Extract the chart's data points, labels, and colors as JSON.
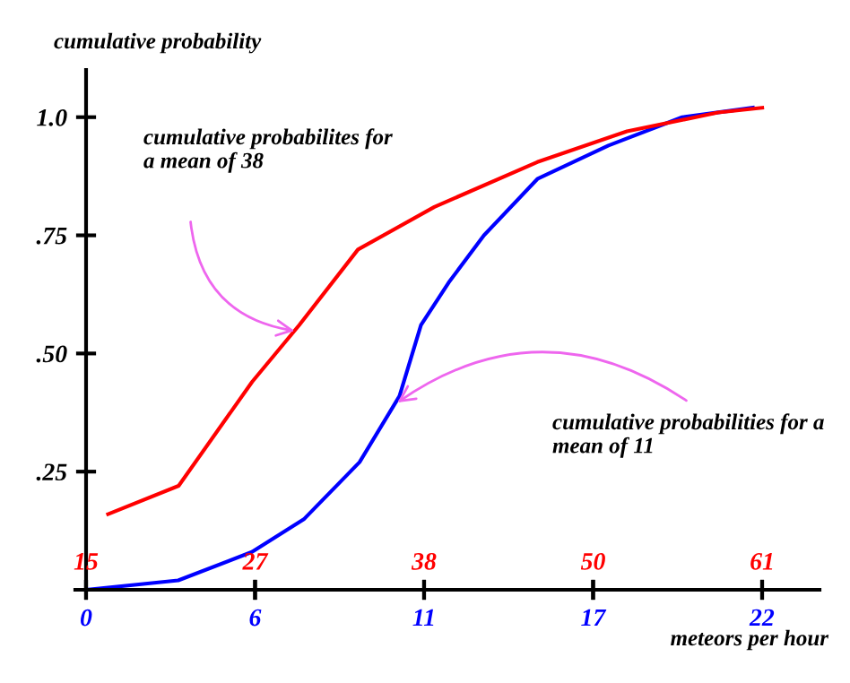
{
  "chart_data": {
    "type": "line",
    "ylabel": "cumulative probability",
    "xlabel": "meteors per hour",
    "xlim": [
      -0.35,
      23.87
    ],
    "xticks": [
      0,
      {
        "value": 5.5,
        "label": "6"
      },
      11,
      {
        "value": 16.5,
        "label": "17"
      },
      22
    ],
    "x2lim": [
      14.27,
      64.9
    ],
    "x2ticks": [
      15,
      {
        "value": 26.5,
        "label": "27"
      },
      38,
      {
        "value": 49.5,
        "label": "50"
      },
      61
    ],
    "ylim": [
      0,
      1.1
    ],
    "yticks": [
      {
        "value": 0.25,
        "label": ".25"
      },
      {
        "value": 0.5,
        "label": ".50"
      },
      {
        "value": 0.75,
        "label": ".75"
      },
      {
        "value": 1.0,
        "label": "1.0"
      }
    ],
    "grid": false,
    "legend": false,
    "marker": "none",
    "line_style": "solid",
    "series": [
      {
        "color": "#ff0000",
        "axis": "x2",
        "x": [
          16.5,
          21.3,
          26.3,
          29.5,
          33.5,
          38.7,
          45.7,
          51.8,
          58,
          61
        ],
        "values": [
          0.16,
          0.22,
          0.44,
          0.56,
          0.72,
          0.81,
          0.905,
          0.97,
          1.01,
          1.02
        ]
      },
      {
        "color": "#0000ff",
        "x": [
          0,
          3.0,
          5.4,
          7.1,
          8.9,
          10.2,
          10.9,
          11.8,
          12.95,
          14.7,
          17.0,
          19.4,
          21.7
        ],
        "values": [
          0.0,
          0.02,
          0.08,
          0.15,
          0.27,
          0.41,
          0.56,
          0.65,
          0.75,
          0.87,
          0.94,
          1.0,
          1.02
        ]
      }
    ],
    "annotations": [
      "cumulative probabilites for\na mean of 38",
      {
        "text": "cumulative probabilities for a\nmean of 11",
        "x": 10.0,
        "y": 0.39
      }
    ]
  }
}
